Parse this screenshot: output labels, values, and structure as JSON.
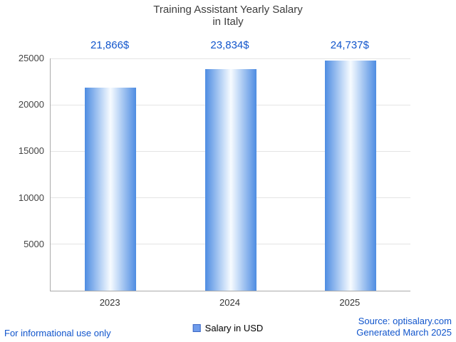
{
  "chart_data": {
    "type": "bar",
    "title": "Training Assistant Yearly Salary",
    "subtitle": "in Italy",
    "categories": [
      "2023",
      "2024",
      "2025"
    ],
    "values": [
      21866,
      23834,
      24737
    ],
    "value_labels": [
      "21,866$",
      "23,834$",
      "24,737$"
    ],
    "ylim": [
      0,
      25000
    ],
    "yticks": [
      5000,
      10000,
      15000,
      20000,
      25000
    ],
    "legend": "Salary in USD",
    "grid": true,
    "legend_position": "bottom-center",
    "colors": {
      "accent_text": "#1155cc",
      "bar_edge": "#4e8ce2",
      "bar_mid": "#cfe2f9",
      "bar_center": "#f7fbff",
      "legend_swatch_fill": "#6f9ceb",
      "legend_swatch_border": "#3b66c4",
      "gridline": "#e4e4e4",
      "title_text": "#3d3d3d"
    }
  },
  "footer": {
    "left": "For informational use only",
    "source": "Source: optisalary.com",
    "generated": "Generated March 2025"
  }
}
